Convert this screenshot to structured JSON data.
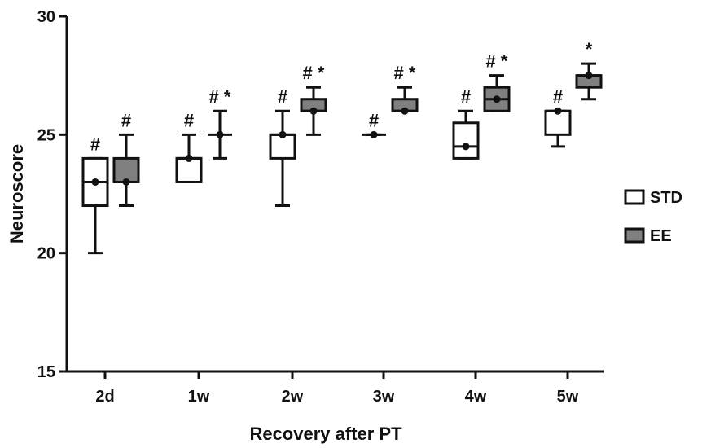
{
  "chart_data": {
    "type": "box",
    "title": "",
    "xlabel": "Recovery after PT",
    "ylabel": "Neuroscore",
    "ylim": [
      15,
      30
    ],
    "yticks": [
      15,
      20,
      25,
      30
    ],
    "categories": [
      "2d",
      "1w",
      "2w",
      "3w",
      "4w",
      "5w"
    ],
    "grid": false,
    "legend_position": "right",
    "series": [
      {
        "name": "STD",
        "color": "#ffffff",
        "boxes": [
          {
            "min": 20,
            "q1": 22,
            "median": 23,
            "q3": 24,
            "max": 24,
            "annotation": "#"
          },
          {
            "min": 23,
            "q1": 23,
            "median": 24,
            "q3": 24,
            "max": 25,
            "annotation": "#"
          },
          {
            "min": 22,
            "q1": 24,
            "median": 25,
            "q3": 25,
            "max": 26,
            "annotation": "#"
          },
          {
            "min": 25,
            "q1": 25,
            "median": 25,
            "q3": 25,
            "max": 25,
            "annotation": "#"
          },
          {
            "min": 24,
            "q1": 24,
            "median": 24.5,
            "q3": 25.5,
            "max": 26,
            "annotation": "#"
          },
          {
            "min": 24.5,
            "q1": 25,
            "median": 26,
            "q3": 26,
            "max": 26,
            "annotation": "#"
          }
        ]
      },
      {
        "name": "EE",
        "color": "#808080",
        "boxes": [
          {
            "min": 22,
            "q1": 23,
            "median": 23,
            "q3": 24,
            "max": 25,
            "annotation": "#"
          },
          {
            "min": 24,
            "q1": 25,
            "median": 25,
            "q3": 25,
            "max": 26,
            "annotation": "#*"
          },
          {
            "min": 25,
            "q1": 26,
            "median": 26,
            "q3": 26.5,
            "max": 27,
            "annotation": "#*"
          },
          {
            "min": 26,
            "q1": 26,
            "median": 26,
            "q3": 26.5,
            "max": 27,
            "annotation": "#*"
          },
          {
            "min": 26,
            "q1": 26,
            "median": 26.5,
            "q3": 27,
            "max": 27.5,
            "annotation": "#*"
          },
          {
            "min": 26.5,
            "q1": 27,
            "median": 27.5,
            "q3": 27.5,
            "max": 28,
            "annotation": "*"
          }
        ]
      }
    ]
  }
}
